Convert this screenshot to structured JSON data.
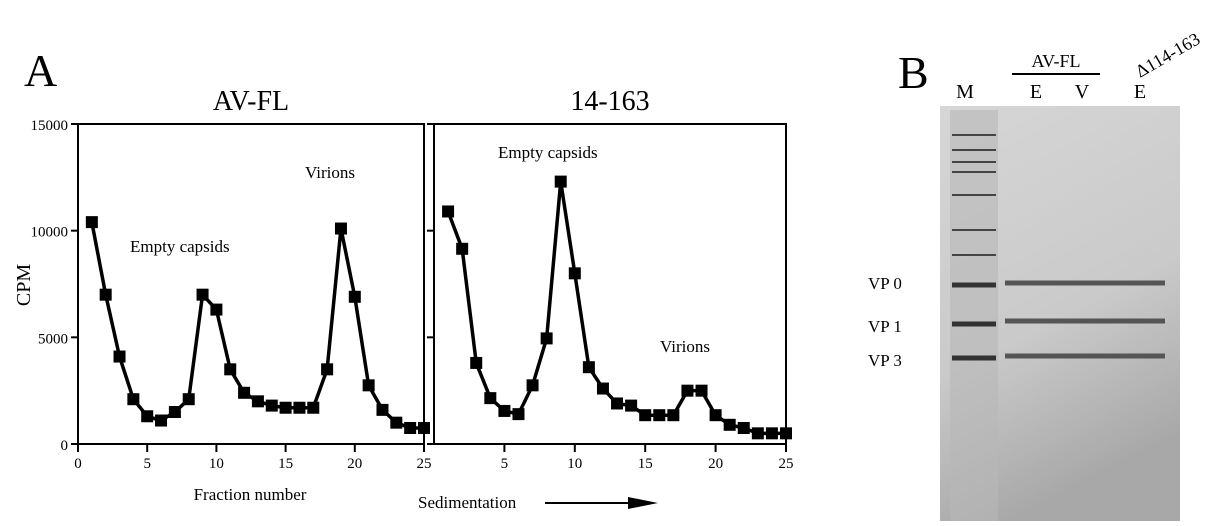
{
  "panel_labels": [
    "A",
    "B"
  ],
  "chart_data": [
    {
      "type": "line",
      "title": "AV-FL",
      "x_label": "Fraction number",
      "y_label": "CPM",
      "color": "#000000",
      "x": [
        1,
        2,
        3,
        4,
        5,
        6,
        7,
        8,
        9,
        10,
        11,
        12,
        13,
        14,
        15,
        16,
        17,
        18,
        19,
        20,
        21,
        22,
        23,
        24,
        25
      ],
      "values": [
        10400,
        7000,
        4100,
        2100,
        1300,
        1100,
        1500,
        2100,
        7000,
        6300,
        3500,
        2400,
        2000,
        1800,
        1700,
        1700,
        1700,
        3500,
        10100,
        6900,
        2750,
        1600,
        1000,
        750,
        750
      ],
      "xlim": [
        0,
        25
      ],
      "xticks": [
        0,
        5,
        10,
        15,
        20,
        25
      ],
      "ylim": [
        0,
        15000
      ],
      "yticks": [
        0,
        5000,
        10000,
        15000
      ],
      "annotations": [
        "Empty capsids",
        "Virions"
      ]
    },
    {
      "type": "line",
      "title": "14-163",
      "color": "#000000",
      "x": [
        1,
        2,
        3,
        4,
        5,
        6,
        7,
        8,
        9,
        10,
        11,
        12,
        13,
        14,
        15,
        16,
        17,
        18,
        19,
        20,
        21,
        22,
        23,
        24,
        25
      ],
      "values": [
        10900,
        9150,
        3800,
        2150,
        1550,
        1400,
        2750,
        4950,
        12300,
        8000,
        3600,
        2600,
        1900,
        1800,
        1350,
        1350,
        1350,
        2500,
        2500,
        1350,
        900,
        750,
        500,
        500,
        500
      ],
      "xlim": [
        0,
        25
      ],
      "xticks": [
        5,
        10,
        15,
        20,
        25
      ],
      "ylim": [
        0,
        15000
      ],
      "yticks": [
        0,
        5000,
        10000,
        15000
      ],
      "annotations": [
        "Empty capsids",
        "Virions",
        "Sedimentation"
      ]
    }
  ],
  "gel": {
    "lanes": [
      "M",
      "E",
      "V",
      "E"
    ],
    "group_label": "AV-FL",
    "mutant_label": "Δ114-163",
    "bands": [
      "VP 0",
      "VP 1",
      "VP 3"
    ]
  }
}
